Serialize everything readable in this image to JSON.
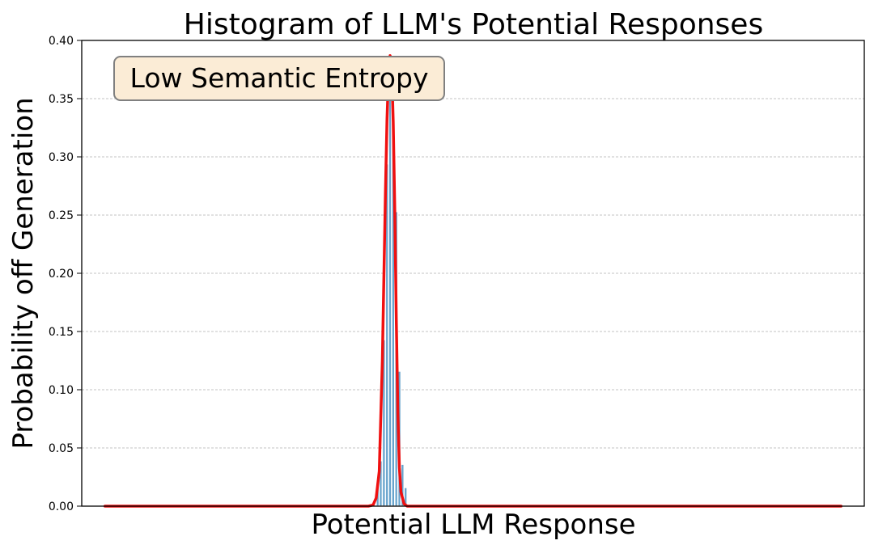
{
  "chart_data": {
    "type": "bar",
    "title": "Histogram of LLM's Potential Responses",
    "xlabel": "Potential LLM Response",
    "ylabel": "Probability off Generation",
    "annotation": "Low Semantic Entropy",
    "ylim": [
      0,
      0.4
    ],
    "yticks": [
      "0.00",
      "0.05",
      "0.10",
      "0.15",
      "0.20",
      "0.25",
      "0.30",
      "0.35",
      "0.40"
    ],
    "grid": "horizontal dashed",
    "legend": "none",
    "x_visible": false,
    "bin_edges": [
      -15.0,
      -14.6,
      -14.2,
      -13.8,
      -13.4,
      -13.0,
      -12.6,
      -12.2,
      -11.8,
      -11.4,
      -11.0,
      -10.6
    ],
    "bars": {
      "name": "histogram",
      "values": [
        0.016,
        0.039,
        0.143,
        0.294,
        0.358,
        0.369,
        0.253,
        0.116,
        0.036,
        0.016,
        0.0
      ],
      "color": "#67a3cc"
    },
    "curve": {
      "name": "density",
      "color": "#f01010",
      "x": [
        -50,
        -30,
        -18,
        -16.0,
        -15.4,
        -15.0,
        -14.6,
        -14.2,
        -13.8,
        -13.6,
        -13.4,
        -13.2,
        -13.0,
        -12.8,
        -12.6,
        -12.4,
        -12.2,
        -12.0,
        -11.8,
        -11.4,
        -11.0,
        -10.6,
        -10.0,
        0,
        20,
        45
      ],
      "y": [
        0.0,
        0.0,
        0.0,
        0.0,
        0.001,
        0.007,
        0.03,
        0.125,
        0.27,
        0.332,
        0.372,
        0.387,
        0.377,
        0.33,
        0.255,
        0.16,
        0.08,
        0.033,
        0.012,
        0.002,
        0.0,
        0.0,
        0.0,
        0.0,
        0.0,
        0.0
      ]
    },
    "xlim": [
      -53,
      48
    ]
  }
}
